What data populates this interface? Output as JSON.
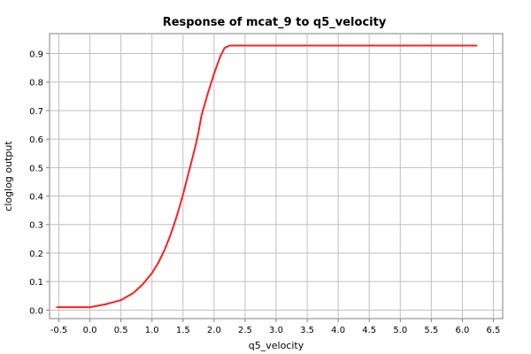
{
  "chart_data": {
    "type": "line",
    "title": "Response of mcat_9 to q5_velocity",
    "xlabel": "q5_velocity",
    "ylabel": "cloglog output",
    "xlim": [
      -0.65,
      6.65
    ],
    "ylim": [
      -0.03,
      0.97
    ],
    "x_ticks": [
      "-0.5",
      "0.0",
      "0.5",
      "1.0",
      "1.5",
      "2.0",
      "2.5",
      "3.0",
      "3.5",
      "4.0",
      "4.5",
      "5.0",
      "5.5",
      "6.0",
      "6.5"
    ],
    "y_ticks": [
      "0.0",
      "0.1",
      "0.2",
      "0.3",
      "0.4",
      "0.5",
      "0.6",
      "0.7",
      "0.8",
      "0.9"
    ],
    "grid": true,
    "series": [
      {
        "color": "#ff2020",
        "points": [
          [
            -0.53,
            0.01
          ],
          [
            0.0,
            0.01
          ],
          [
            0.25,
            0.02
          ],
          [
            0.5,
            0.035
          ],
          [
            0.7,
            0.06
          ],
          [
            0.85,
            0.09
          ],
          [
            1.0,
            0.13
          ],
          [
            1.1,
            0.165
          ],
          [
            1.2,
            0.21
          ],
          [
            1.3,
            0.265
          ],
          [
            1.4,
            0.33
          ],
          [
            1.5,
            0.405
          ],
          [
            1.6,
            0.49
          ],
          [
            1.7,
            0.575
          ],
          [
            1.75,
            0.625
          ],
          [
            1.8,
            0.685
          ],
          [
            1.9,
            0.76
          ],
          [
            2.0,
            0.83
          ],
          [
            2.1,
            0.89
          ],
          [
            2.17,
            0.92
          ],
          [
            2.25,
            0.928
          ],
          [
            3.0,
            0.928
          ],
          [
            6.23,
            0.928
          ]
        ]
      }
    ]
  }
}
